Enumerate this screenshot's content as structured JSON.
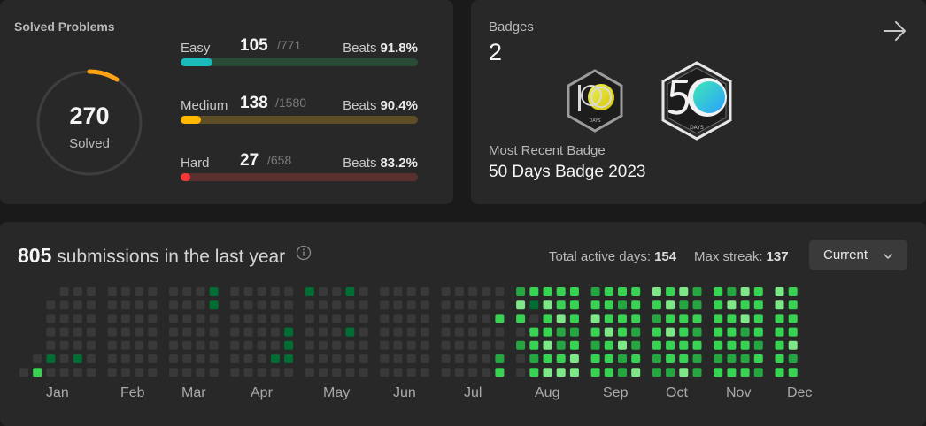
{
  "solved": {
    "title": "Solved Problems",
    "count": "270",
    "label": "Solved",
    "difficulties": [
      {
        "name": "Easy",
        "solved": "105",
        "total": "/771",
        "beats_label": "Beats",
        "beats": "91.8%",
        "progress": 0.136,
        "color": "#1cbaba",
        "track_color": "#2a4c37"
      },
      {
        "name": "Medium",
        "solved": "138",
        "total": "/1580",
        "beats_label": "Beats",
        "beats": "90.4%",
        "progress": 0.087,
        "color": "#ffb700",
        "track_color": "#5e4e25"
      },
      {
        "name": "Hard",
        "solved": "27",
        "total": "/658",
        "beats_label": "Beats",
        "beats": "83.2%",
        "progress": 0.041,
        "color": "#f63737",
        "track_color": "#5a302f"
      }
    ],
    "ring_progress": 0.09,
    "ring_color": "#ffa116",
    "ring_track_color": "#3e3e3e"
  },
  "badges": {
    "label": "Badges",
    "count": "2",
    "recent_label": "Most Recent Badge",
    "recent_name": "50 Days Badge 2023",
    "items": [
      {
        "icon": "100-days-badge-icon",
        "number": "100",
        "caption": "DAYS"
      },
      {
        "icon": "50-days-badge-icon",
        "number": "50",
        "caption": "DAYS"
      }
    ]
  },
  "calendar": {
    "submissions": "805",
    "submissions_text": "submissions in the last year",
    "active_label": "Total active days:",
    "active_value": "154",
    "streak_label": "Max streak:",
    "streak_value": "137",
    "dropdown_value": "Current",
    "months": [
      "Jan",
      "Feb",
      "Mar",
      "Apr",
      "May",
      "Jun",
      "Jul",
      "Aug",
      "Sep",
      "Oct",
      "Nov",
      "Dec"
    ],
    "colors": {
      "empty": "#393939",
      "l1": "#0e4429",
      "l2": "#006d32",
      "l3": "#26a641",
      "l4": "#39d353",
      "l5": "#7ee787"
    },
    "weeks": [
      [
        "",
        "",
        "",
        "",
        "",
        "",
        0
      ],
      [
        "",
        "",
        "",
        "",
        "",
        0,
        4
      ],
      [
        "",
        0,
        0,
        0,
        0,
        2,
        0
      ],
      [
        0,
        0,
        0,
        0,
        0,
        0,
        0
      ],
      [
        0,
        0,
        0,
        0,
        0,
        2,
        0
      ],
      [
        0,
        0,
        0,
        0,
        0,
        0,
        0
      ],
      [
        0,
        0,
        0,
        0,
        0,
        0,
        0
      ],
      [
        0,
        0,
        0,
        0,
        0,
        0,
        0
      ],
      [
        0,
        0,
        0,
        0,
        0,
        0,
        0
      ],
      [
        0,
        0,
        0,
        0,
        0,
        0,
        0
      ],
      [
        0,
        0,
        0,
        0,
        0,
        0,
        0
      ],
      [
        0,
        0,
        0,
        0,
        0,
        0,
        0
      ],
      [
        0,
        0,
        0,
        0,
        0,
        0,
        0
      ],
      [
        2,
        2,
        0,
        0,
        0,
        0,
        0
      ],
      [
        0,
        0,
        0,
        0,
        0,
        0,
        0
      ],
      [
        0,
        0,
        0,
        0,
        0,
        0,
        0
      ],
      [
        0,
        0,
        0,
        0,
        0,
        0,
        0
      ],
      [
        0,
        0,
        0,
        0,
        0,
        2,
        0
      ],
      [
        0,
        0,
        0,
        2,
        2,
        2,
        0
      ],
      [
        2,
        0,
        0,
        0,
        0,
        0,
        0
      ],
      [
        0,
        0,
        0,
        0,
        0,
        0,
        0
      ],
      [
        0,
        0,
        0,
        0,
        0,
        0,
        0
      ],
      [
        2,
        0,
        0,
        2,
        0,
        0,
        0
      ],
      [
        0,
        0,
        0,
        0,
        0,
        0,
        0
      ],
      [
        0,
        0,
        0,
        0,
        0,
        0,
        0
      ],
      [
        0,
        0,
        0,
        0,
        0,
        0,
        0
      ],
      [
        0,
        0,
        0,
        0,
        0,
        0,
        0
      ],
      [
        0,
        0,
        0,
        0,
        0,
        0,
        0
      ],
      [
        0,
        0,
        0,
        0,
        0,
        0,
        0
      ],
      [
        0,
        0,
        0,
        0,
        0,
        0,
        0
      ],
      [
        0,
        0,
        0,
        0,
        0,
        0,
        0
      ],
      [
        0,
        0,
        0,
        0,
        0,
        0,
        0
      ],
      [
        0,
        0,
        4,
        0,
        0,
        3,
        4
      ],
      [
        3,
        5,
        4,
        0,
        3,
        0,
        0
      ],
      [
        4,
        2,
        0,
        4,
        4,
        3,
        4
      ],
      [
        4,
        5,
        4,
        4,
        5,
        4,
        5
      ],
      [
        4,
        4,
        5,
        3,
        3,
        4,
        5
      ],
      [
        4,
        4,
        4,
        3,
        4,
        5,
        5
      ],
      [
        3,
        4,
        5,
        4,
        3,
        4,
        4
      ],
      [
        4,
        4,
        4,
        5,
        4,
        4,
        4
      ],
      [
        4,
        3,
        4,
        4,
        5,
        3,
        3
      ],
      [
        4,
        4,
        4,
        3,
        3,
        4,
        5
      ],
      [
        5,
        4,
        3,
        4,
        4,
        3,
        3
      ],
      [
        4,
        5,
        4,
        5,
        4,
        4,
        3
      ],
      [
        5,
        3,
        4,
        4,
        4,
        4,
        5
      ],
      [
        3,
        3,
        4,
        3,
        4,
        3,
        3
      ],
      [
        4,
        4,
        4,
        4,
        4,
        3,
        4
      ],
      [
        3,
        5,
        4,
        4,
        4,
        3,
        4
      ],
      [
        5,
        4,
        5,
        3,
        4,
        3,
        4
      ],
      [
        4,
        4,
        4,
        4,
        3,
        4,
        3
      ],
      [
        5,
        5,
        4,
        4,
        4,
        4,
        4
      ],
      [
        4,
        4,
        4,
        4,
        5,
        3,
        4
      ]
    ]
  }
}
